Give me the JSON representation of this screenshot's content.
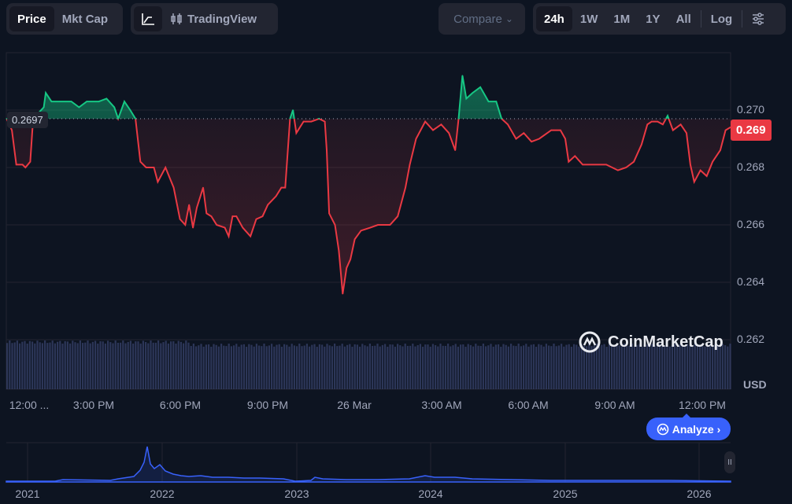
{
  "toolbar": {
    "view_tabs": [
      {
        "label": "Price",
        "active": true
      },
      {
        "label": "Mkt Cap",
        "active": false
      }
    ],
    "chart_type": {
      "line_icon": "line-chart-icon",
      "tradingview_icon": "candlestick-icon",
      "tradingview_label": "TradingView"
    },
    "compare_label": "Compare",
    "ranges": [
      {
        "label": "24h",
        "active": true
      },
      {
        "label": "1W"
      },
      {
        "label": "1M"
      },
      {
        "label": "1Y"
      },
      {
        "label": "All"
      }
    ],
    "log_label": "Log",
    "settings_icon": "sliders-icon"
  },
  "chart_data": {
    "type": "line",
    "xlabel": "",
    "ylabel": "",
    "currency_label": "USD",
    "baseline_value": "0.2697",
    "last_price_label": "0.269",
    "ylim": [
      0.2615,
      0.2719
    ],
    "y_ticks": [
      "0.270",
      "0.268",
      "0.266",
      "0.264",
      "0.262"
    ],
    "x_ticks": [
      "12:00 ...",
      "3:00 PM",
      "6:00 PM",
      "9:00 PM",
      "26 Mar",
      "3:00 AM",
      "6:00 AM",
      "9:00 AM",
      "12:00 PM"
    ],
    "grid": true,
    "colors": {
      "above": "#16c784",
      "below": "#ea3943",
      "volume": "#3a4570"
    },
    "points": [
      [
        "25 Mar 11:59",
        0.2697
      ],
      [
        "25 Mar 12:10",
        0.2693
      ],
      [
        "25 Mar 12:19",
        0.2681
      ],
      [
        "25 Mar 12:32",
        0.2681
      ],
      [
        "25 Mar 12:38",
        0.268
      ],
      [
        "25 Mar 12:48",
        0.2682
      ],
      [
        "25 Mar 12:54",
        0.2697
      ],
      [
        "25 Mar 13:16",
        0.2701
      ],
      [
        "25 Mar 13:20",
        0.2706
      ],
      [
        "25 Mar 13:32",
        0.2703
      ],
      [
        "25 Mar 13:48",
        0.2703
      ],
      [
        "25 Mar 14:13",
        0.2703
      ],
      [
        "25 Mar 14:29",
        0.2701
      ],
      [
        "25 Mar 14:45",
        0.2703
      ],
      [
        "25 Mar 15:10",
        0.2703
      ],
      [
        "25 Mar 15:26",
        0.2704
      ],
      [
        "25 Mar 15:42",
        0.2701
      ],
      [
        "25 Mar 15:50",
        0.2697
      ],
      [
        "25 Mar 16:03",
        0.2703
      ],
      [
        "25 Mar 16:15",
        0.27
      ],
      [
        "25 Mar 16:26",
        0.2697
      ],
      [
        "25 Mar 16:36",
        0.2682
      ],
      [
        "25 Mar 16:48",
        0.268
      ],
      [
        "25 Mar 17:04",
        0.268
      ],
      [
        "25 Mar 17:12",
        0.2675
      ],
      [
        "25 Mar 17:28",
        0.268
      ],
      [
        "25 Mar 17:45",
        0.2673
      ],
      [
        "25 Mar 17:58",
        0.2662
      ],
      [
        "25 Mar 18:09",
        0.266
      ],
      [
        "25 Mar 18:17",
        0.2667
      ],
      [
        "25 Mar 18:25",
        0.2659
      ],
      [
        "25 Mar 18:33",
        0.2666
      ],
      [
        "25 Mar 18:46",
        0.2673
      ],
      [
        "25 Mar 18:53",
        0.2664
      ],
      [
        "25 Mar 19:03",
        0.2663
      ],
      [
        "25 Mar 19:14",
        0.266
      ],
      [
        "25 Mar 19:31",
        0.2659
      ],
      [
        "25 Mar 19:39",
        0.2656
      ],
      [
        "25 Mar 19:47",
        0.2663
      ],
      [
        "25 Mar 19:55",
        0.2663
      ],
      [
        "25 Mar 20:08",
        0.2659
      ],
      [
        "25 Mar 20:24",
        0.2656
      ],
      [
        "25 Mar 20:36",
        0.2662
      ],
      [
        "25 Mar 20:49",
        0.2663
      ],
      [
        "25 Mar 21:00",
        0.2667
      ],
      [
        "25 Mar 21:17",
        0.267
      ],
      [
        "25 Mar 21:28",
        0.2673
      ],
      [
        "25 Mar 21:36",
        0.2673
      ],
      [
        "25 Mar 21:46",
        0.2697
      ],
      [
        "25 Mar 21:52",
        0.27
      ],
      [
        "25 Mar 21:59",
        0.2692
      ],
      [
        "25 Mar 22:14",
        0.2696
      ],
      [
        "25 Mar 22:30",
        0.2696
      ],
      [
        "25 Mar 22:46",
        0.2697
      ],
      [
        "25 Mar 22:58",
        0.2696
      ],
      [
        "25 Mar 23:02",
        0.2686
      ],
      [
        "25 Mar 23:07",
        0.2664
      ],
      [
        "25 Mar 23:19",
        0.266
      ],
      [
        "25 Mar 23:27",
        0.2651
      ],
      [
        "25 Mar 23:35",
        0.2636
      ],
      [
        "25 Mar 23:43",
        0.2645
      ],
      [
        "25 Mar 23:51",
        0.2648
      ],
      [
        "26 Mar 00:00",
        0.2655
      ],
      [
        "26 Mar 00:13",
        0.2658
      ],
      [
        "26 Mar 00:32",
        0.2659
      ],
      [
        "26 Mar 00:48",
        0.266
      ],
      [
        "26 Mar 01:13",
        0.266
      ],
      [
        "26 Mar 01:29",
        0.2663
      ],
      [
        "26 Mar 01:45",
        0.2673
      ],
      [
        "26 Mar 01:54",
        0.2681
      ],
      [
        "26 Mar 02:07",
        0.269
      ],
      [
        "26 Mar 02:26",
        0.2696
      ],
      [
        "26 Mar 02:42",
        0.2693
      ],
      [
        "26 Mar 02:59",
        0.2695
      ],
      [
        "26 Mar 03:15",
        0.2692
      ],
      [
        "26 Mar 03:28",
        0.2686
      ],
      [
        "26 Mar 03:35",
        0.2697
      ],
      [
        "26 Mar 03:43",
        0.2712
      ],
      [
        "26 Mar 03:51",
        0.2704
      ],
      [
        "26 Mar 04:04",
        0.2706
      ],
      [
        "26 Mar 04:20",
        0.2708
      ],
      [
        "26 Mar 04:37",
        0.2703
      ],
      [
        "26 Mar 04:53",
        0.2703
      ],
      [
        "26 Mar 05:04",
        0.2697
      ],
      [
        "26 Mar 05:17",
        0.2695
      ],
      [
        "26 Mar 05:34",
        0.269
      ],
      [
        "26 Mar 05:50",
        0.2692
      ],
      [
        "26 Mar 06:06",
        0.2689
      ],
      [
        "26 Mar 06:22",
        0.269
      ],
      [
        "26 Mar 06:47",
        0.2693
      ],
      [
        "26 Mar 07:06",
        0.2693
      ],
      [
        "26 Mar 07:16",
        0.269
      ],
      [
        "26 Mar 07:23",
        0.2682
      ],
      [
        "26 Mar 07:36",
        0.2684
      ],
      [
        "26 Mar 07:52",
        0.2681
      ],
      [
        "26 Mar 08:16",
        0.2681
      ],
      [
        "26 Mar 08:41",
        0.2681
      ],
      [
        "26 Mar 09:05",
        0.2679
      ],
      [
        "26 Mar 09:22",
        0.268
      ],
      [
        "26 Mar 09:38",
        0.2682
      ],
      [
        "26 Mar 09:54",
        0.2688
      ],
      [
        "26 Mar 10:06",
        0.2695
      ],
      [
        "26 Mar 10:15",
        0.2696
      ],
      [
        "26 Mar 10:27",
        0.2696
      ],
      [
        "26 Mar 10:38",
        0.2695
      ],
      [
        "26 Mar 10:48",
        0.2698
      ],
      [
        "26 Mar 10:59",
        0.2693
      ],
      [
        "26 Mar 11:15",
        0.2695
      ],
      [
        "26 Mar 11:27",
        0.2692
      ],
      [
        "26 Mar 11:35",
        0.2681
      ],
      [
        "26 Mar 11:43",
        0.2675
      ],
      [
        "26 Mar 11:56",
        0.2679
      ],
      [
        "26 Mar 12:09",
        0.2677
      ],
      [
        "26 Mar 12:21",
        0.2682
      ],
      [
        "26 Mar 12:37",
        0.2686
      ],
      [
        "26 Mar 12:48",
        0.2693
      ],
      [
        "26 Mar 12:58",
        0.2694
      ]
    ]
  },
  "navigator": {
    "x_ticks": [
      "2021",
      "2022",
      "2023",
      "2024",
      "2025",
      "2026"
    ],
    "handle_label": "II"
  },
  "watermark": "CoinMarketCap",
  "analyze_label": "Analyze"
}
